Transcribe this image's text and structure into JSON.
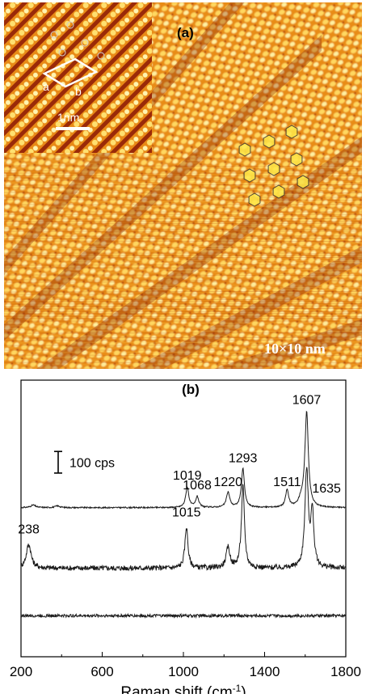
{
  "panel_a": {
    "label": "(a)",
    "scale_text": "10×10 nm",
    "inset": {
      "vector_a": "a",
      "vector_b": "b",
      "scale_bar": "1nm"
    }
  },
  "chart_data": {
    "type": "line",
    "panel_label": "(b)",
    "xlabel": "Raman shift (cm⁻¹)",
    "xlabel_main": "Raman shift (cm",
    "xlabel_exp": "-1",
    "xlabel_close": ")",
    "xlim": [
      200,
      1800
    ],
    "xticks": [
      200,
      600,
      1000,
      1400,
      1800
    ],
    "xtick_labels": [
      "200",
      "600",
      "1000",
      "1400",
      "1800"
    ],
    "y_units": "cps",
    "intensity_scale_bar": {
      "value": 100,
      "label": "100 cps"
    },
    "colors": {
      "line": "#1a1a1a",
      "stm_dark": "#7a1a0a",
      "stm_bright": "#ffe680"
    },
    "series": [
      {
        "offset": 690,
        "noise": 3,
        "peaks": [
          {
            "x": 260,
            "height": 12,
            "width": 14
          },
          {
            "x": 380,
            "height": 8,
            "width": 14
          },
          {
            "x": 1019,
            "height": 95,
            "width": 9
          },
          {
            "x": 1068,
            "height": 50,
            "width": 9
          },
          {
            "x": 1220,
            "height": 70,
            "width": 10
          },
          {
            "x": 1293,
            "height": 180,
            "width": 9
          },
          {
            "x": 1511,
            "height": 80,
            "width": 9
          },
          {
            "x": 1580,
            "height": 30,
            "width": 14
          },
          {
            "x": 1607,
            "height": 440,
            "width": 10
          }
        ],
        "peak_labels": [
          {
            "text": "1019",
            "x": 1019,
            "y": 820
          },
          {
            "text": "1068",
            "x": 1068,
            "y": 775
          },
          {
            "text": "1220",
            "x": 1220,
            "y": 790
          },
          {
            "text": "1293",
            "x": 1293,
            "y": 900
          },
          {
            "text": "1511",
            "x": 1511,
            "y": 790
          },
          {
            "text": "1607",
            "x": 1607,
            "y": 1170
          }
        ]
      },
      {
        "offset": 410,
        "noise": 12,
        "peaks": [
          {
            "x": 238,
            "height": 110,
            "width": 14
          },
          {
            "x": 1015,
            "height": 190,
            "width": 9
          },
          {
            "x": 1220,
            "height": 95,
            "width": 11
          },
          {
            "x": 1293,
            "height": 380,
            "width": 9
          },
          {
            "x": 1607,
            "height": 450,
            "width": 10
          },
          {
            "x": 1635,
            "height": 250,
            "width": 9
          }
        ],
        "peak_labels": [
          {
            "text": "238",
            "x": 238,
            "y": 570
          },
          {
            "text": "1015",
            "x": 1015,
            "y": 650
          },
          {
            "text": "1635",
            "x": 1705,
            "y": 760
          }
        ]
      },
      {
        "offset": 190,
        "noise": 7,
        "peaks": [],
        "peak_labels": []
      }
    ]
  }
}
